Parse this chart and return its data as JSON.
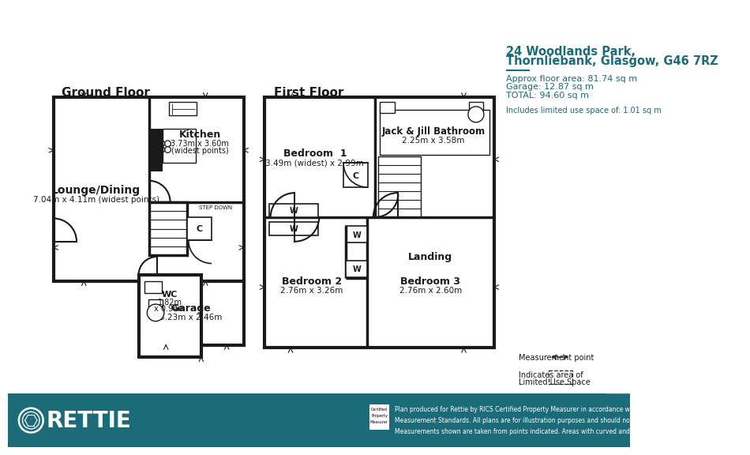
{
  "title_line1": "24 Woodlands Park,",
  "title_line2": "Thornliebank, Glasgow, G46 7RZ",
  "area_line1": "Approx floor area: 81.74 sq m",
  "area_line2": "Garage: 12.87 sq m",
  "area_line3": "TOTAL: 94.60 sq m",
  "limited_use": "Includes limited use space of: 1.01 sq m",
  "ground_floor_label": "Ground Floor",
  "first_floor_label": "First Floor",
  "footer_brand": "RETTIE",
  "footer_small": "Plan produced for Rettie by RICS Certified Property Measurer in accordance with RICS International Property\nMeasurement Standards. All plans are for illustration purposes and should not be relied upon as statement of fact.\nMeasurements shown are taken from points indicated. Areas with curved and angled walls are approximated",
  "meas_label": "Measurement point",
  "limited_label1": "Indicates area of",
  "limited_label2": "Limited Use Space",
  "bg_color": "#ffffff",
  "wall_color": "#1a1a1a",
  "teal_color": "#1c6b78",
  "footer_bg": "#1c6b78",
  "label_color": "#1a1a1a"
}
